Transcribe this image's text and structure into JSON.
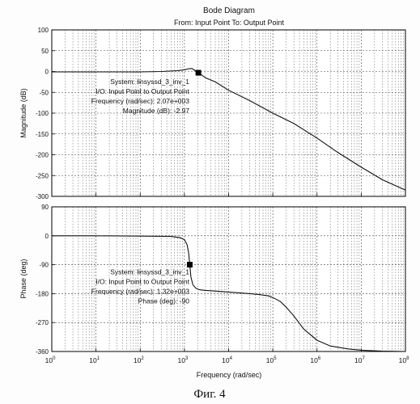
{
  "title": "Bode Diagram",
  "subtitle": "From: Input Point  To: Output Point",
  "caption": "Фиг. 4",
  "xlabel": "Frequency  (rad/sec)",
  "chart_data": [
    {
      "type": "line",
      "ylabel": "Magnitude (dB)",
      "xscale": "log",
      "xlim": [
        1,
        100000000
      ],
      "ylim": [
        -300,
        100
      ],
      "yticks": [
        100,
        50,
        0,
        -50,
        -100,
        -150,
        -200,
        -250,
        -300
      ],
      "ytick_labels": [
        "100",
        "50",
        "0",
        "-50",
        "-100",
        "-150",
        "-200",
        "-250",
        "-300"
      ],
      "grid": true,
      "series": [
        {
          "x": [
            1,
            10,
            100,
            300,
            700,
            1000,
            1300,
            1500,
            1700,
            2070,
            3000,
            5000,
            10000,
            30000,
            100000,
            300000,
            1000000,
            3000000,
            10000000,
            30000000,
            100000000
          ],
          "y": [
            -1,
            -1,
            -1,
            0,
            2,
            4,
            7,
            7,
            3,
            -3,
            -15,
            -25,
            -45,
            -70,
            -100,
            -125,
            -160,
            -195,
            -230,
            -260,
            -285
          ]
        }
      ],
      "datatip": {
        "x": 2070,
        "y": -2.97,
        "lines": [
          "System: linsyssd_3_inv_1",
          "I/O: Input Point to Output Point",
          "Frequency (rad/sec): 2.07e+003",
          "Magnitude (dB): -2.97"
        ]
      }
    },
    {
      "type": "line",
      "ylabel": "Phase (deg)",
      "xscale": "log",
      "xlim": [
        1,
        100000000
      ],
      "ylim": [
        -360,
        90
      ],
      "yticks": [
        90,
        0,
        -90,
        -180,
        -270,
        -360
      ],
      "ytick_labels": [
        "90",
        "0",
        "-90",
        "-180",
        "-270",
        "-360"
      ],
      "xticks": [
        1,
        10,
        100,
        1000,
        10000,
        100000,
        1000000,
        10000000,
        100000000
      ],
      "xtick_labels": [
        {
          "base": "10",
          "exp": "0"
        },
        {
          "base": "10",
          "exp": "1"
        },
        {
          "base": "10",
          "exp": "2"
        },
        {
          "base": "10",
          "exp": "3"
        },
        {
          "base": "10",
          "exp": "4"
        },
        {
          "base": "10",
          "exp": "5"
        },
        {
          "base": "10",
          "exp": "6"
        },
        {
          "base": "10",
          "exp": "7"
        },
        {
          "base": "10",
          "exp": "8"
        }
      ],
      "grid": true,
      "series": [
        {
          "x": [
            1,
            10,
            100,
            500,
            800,
            1000,
            1150,
            1250,
            1320,
            1400,
            1550,
            1800,
            2200,
            3000,
            5000,
            10000,
            30000,
            50000,
            80000,
            100000,
            150000,
            200000,
            300000,
            500000,
            1000000,
            2000000,
            5000000,
            10000000,
            30000000,
            100000000
          ],
          "y": [
            0,
            0,
            -1,
            -2,
            -6,
            -12,
            -28,
            -55,
            -90,
            -128,
            -152,
            -163,
            -168,
            -170,
            -172,
            -175,
            -180,
            -183,
            -187,
            -192,
            -205,
            -222,
            -250,
            -290,
            -325,
            -343,
            -352,
            -356,
            -359,
            -360
          ]
        }
      ],
      "datatip": {
        "x": 1320,
        "y": -90,
        "lines": [
          "System: linsyssd_3_inv_1",
          "I/O: Input Point to Output Point",
          "Frequency (rad/sec): 1.32e+003",
          "Phase (deg): -90"
        ]
      }
    }
  ]
}
